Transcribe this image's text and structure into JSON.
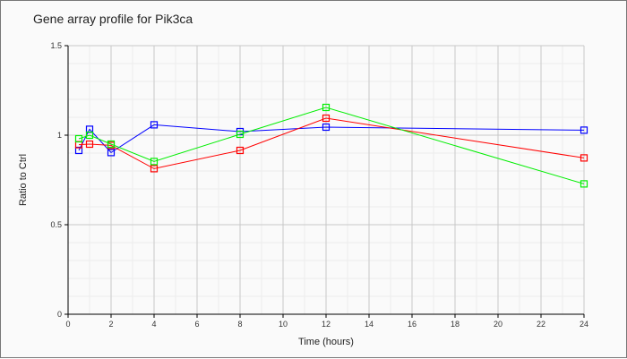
{
  "chart_data": {
    "type": "line",
    "title": "Gene array profile for Pik3ca",
    "xlabel": "Time (hours)",
    "ylabel": "Ratio to Ctrl",
    "xlim": [
      0,
      24
    ],
    "ylim": [
      0,
      1.5
    ],
    "x_ticks": [
      "0",
      "2",
      "4",
      "6",
      "8",
      "10",
      "12",
      "14",
      "16",
      "18",
      "20",
      "22",
      "24"
    ],
    "y_ticks": [
      "0",
      "0.5",
      "1",
      "1.5"
    ],
    "grid": true,
    "legend": "none",
    "x": [
      0.5,
      1,
      2,
      4,
      8,
      12,
      24
    ],
    "series": [
      {
        "name": "blue",
        "color": "#0000ff",
        "values": [
          0.915,
          1.033,
          0.903,
          1.058,
          1.02,
          1.045,
          1.028
        ]
      },
      {
        "name": "red",
        "color": "#ff0000",
        "values": [
          0.947,
          0.95,
          0.943,
          0.813,
          0.915,
          1.095,
          0.873
        ]
      },
      {
        "name": "green",
        "color": "#00ee00",
        "values": [
          0.98,
          1.0,
          0.95,
          0.853,
          1.005,
          1.155,
          0.728
        ]
      }
    ]
  }
}
